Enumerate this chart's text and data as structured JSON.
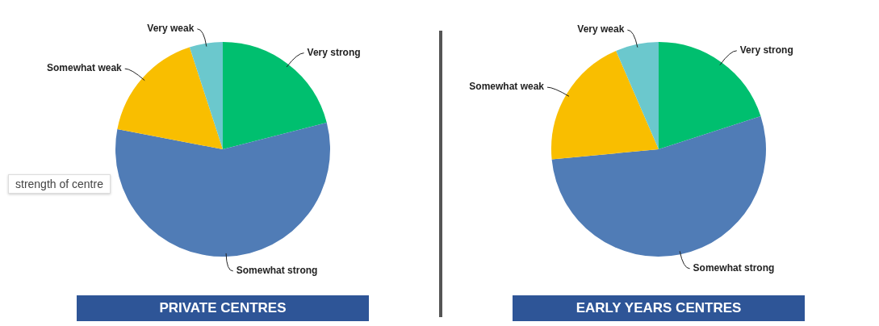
{
  "chart_data": [
    {
      "type": "pie",
      "title": "PRIVATE CENTRES",
      "categories": [
        "Very strong",
        "Somewhat strong",
        "Somewhat weak",
        "Very weak"
      ],
      "values": [
        21,
        57,
        17,
        5
      ],
      "colors": [
        "#00bf6f",
        "#507cb6",
        "#f9be00",
        "#6bc8cd"
      ],
      "annotations": [
        "strength of centre"
      ]
    },
    {
      "type": "pie",
      "title": "EARLY YEARS CENTRES",
      "categories": [
        "Very strong",
        "Somewhat strong",
        "Somewhat weak",
        "Very weak"
      ],
      "values": [
        20,
        53.5,
        20,
        6.5
      ],
      "colors": [
        "#00bf6f",
        "#507cb6",
        "#f9be00",
        "#6bc8cd"
      ]
    }
  ]
}
